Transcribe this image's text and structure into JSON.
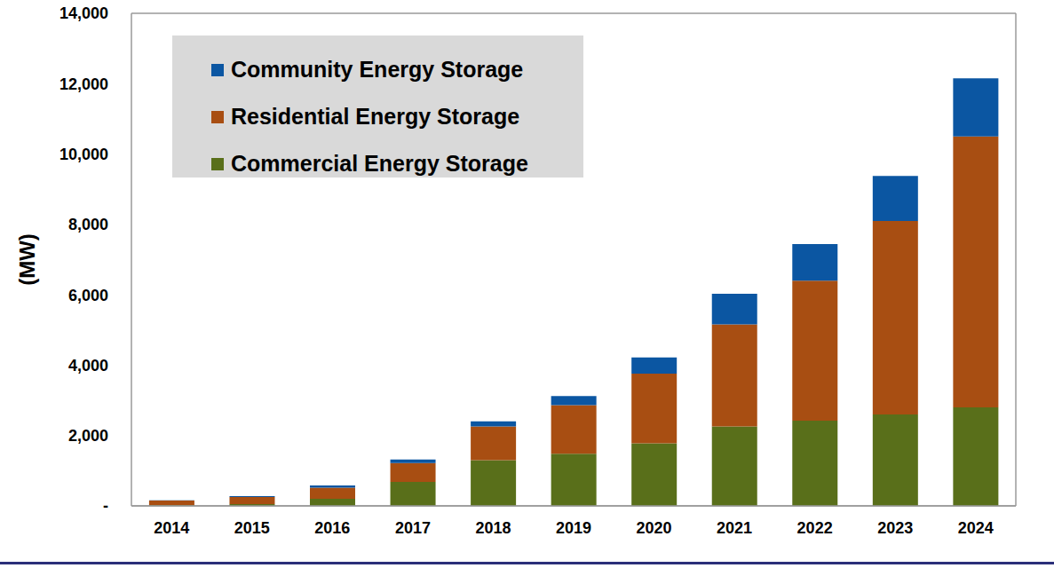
{
  "chart_data": {
    "type": "bar",
    "stacked": true,
    "grid": true,
    "legend": "upper left",
    "y_label": "(MW)",
    "categories": [
      "2014",
      "2015",
      "2016",
      "2017",
      "2018",
      "2019",
      "2020",
      "2021",
      "2022",
      "2023",
      "2024"
    ],
    "series": [
      {
        "name": "Community Energy Storage",
        "color": "#0b56a2",
        "values": [
          10,
          30,
          60,
          100,
          140,
          260,
          460,
          870,
          1040,
          1280,
          1650
        ]
      },
      {
        "name": "Residential Energy Storage",
        "color": "#a84e12",
        "values": [
          130,
          200,
          320,
          540,
          960,
          1380,
          1980,
          2900,
          3980,
          5500,
          7700
        ]
      },
      {
        "name": "Commercial Energy Storage",
        "color": "#596f1a",
        "values": [
          20,
          50,
          200,
          680,
          1300,
          1480,
          1780,
          2260,
          2420,
          2600,
          2800
        ]
      }
    ],
    "ylim": [
      0,
      14000
    ],
    "yticks": [
      {
        "value": 0,
        "label": "-"
      },
      {
        "value": 2000,
        "label": "2,000"
      },
      {
        "value": 4000,
        "label": "4,000"
      },
      {
        "value": 6000,
        "label": "6,000"
      },
      {
        "value": 8000,
        "label": "8,000"
      },
      {
        "value": 10000,
        "label": "10,000"
      },
      {
        "value": 12000,
        "label": "12,000"
      },
      {
        "value": 14000,
        "label": "14,000"
      }
    ]
  }
}
